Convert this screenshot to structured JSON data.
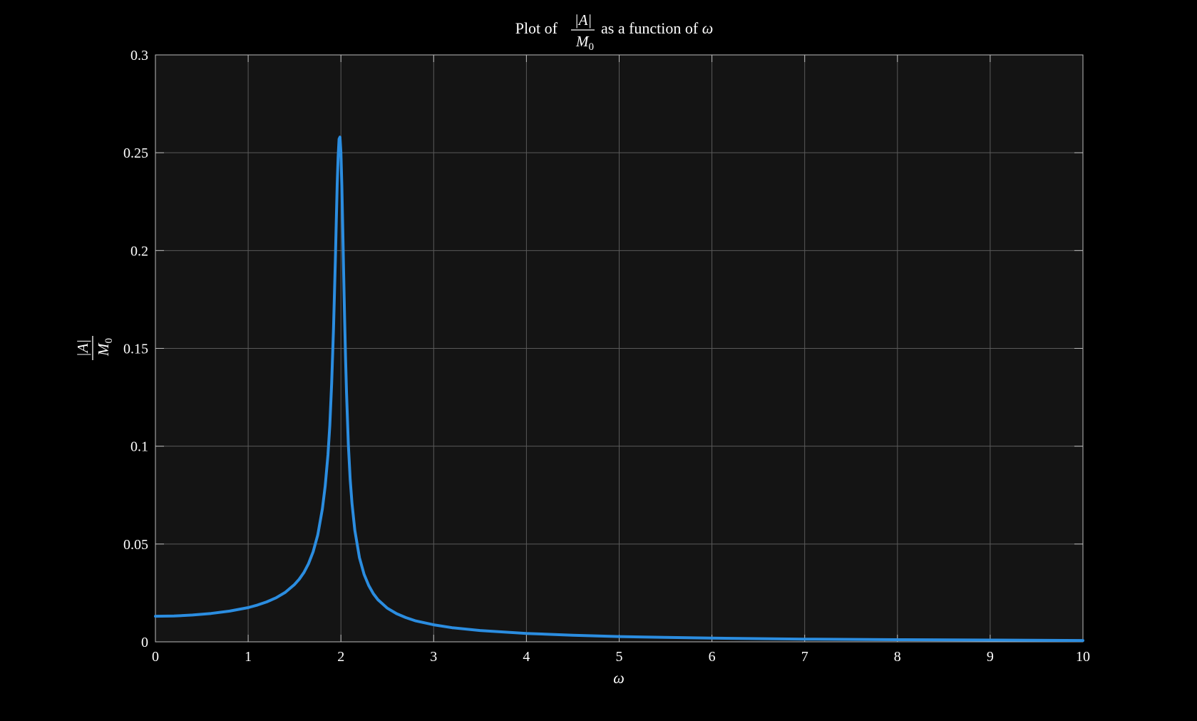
{
  "chart_data": {
    "type": "line",
    "title": {
      "prefix": "Plot of",
      "frac_num": "|A|",
      "frac_den": "M",
      "frac_den_sub": "0",
      "suffix": "as a function of",
      "var": "ω"
    },
    "xlabel": "ω",
    "ylabel": {
      "frac_num": "|A|",
      "frac_den": "M",
      "frac_den_sub": "0"
    },
    "xlim": [
      0,
      10
    ],
    "ylim": [
      0,
      0.3
    ],
    "xticks": [
      "0",
      "1",
      "2",
      "3",
      "4",
      "5",
      "6",
      "7",
      "8",
      "9",
      "10"
    ],
    "yticks": [
      "0",
      "0.05",
      "0.1",
      "0.15",
      "0.2",
      "0.25",
      "0.3"
    ],
    "grid": true,
    "colors": {
      "background": "#000000",
      "axes_background": "#141414",
      "grid": "#5a5a5a",
      "axes": "#bbbbbb",
      "line": "#2b8de0",
      "text": "#ffffff"
    },
    "series": [
      {
        "x": [
          0,
          0.2,
          0.4,
          0.6,
          0.8,
          1.0,
          1.1,
          1.2,
          1.3,
          1.4,
          1.5,
          1.55,
          1.6,
          1.65,
          1.7,
          1.75,
          1.8,
          1.83,
          1.86,
          1.88,
          1.9,
          1.92,
          1.94,
          1.95,
          1.96,
          1.97,
          1.98,
          1.99,
          2.0,
          2.01,
          2.02,
          2.03,
          2.04,
          2.05,
          2.06,
          2.08,
          2.1,
          2.12,
          2.15,
          2.2,
          2.25,
          2.3,
          2.35,
          2.4,
          2.5,
          2.6,
          2.7,
          2.8,
          3.0,
          3.2,
          3.5,
          4.0,
          4.5,
          5.0,
          5.5,
          6.0,
          7.0,
          8.0,
          9.0,
          10.0
        ],
        "y": [
          0.0131,
          0.0132,
          0.0137,
          0.0145,
          0.0157,
          0.0175,
          0.0188,
          0.0204,
          0.0225,
          0.0253,
          0.0293,
          0.032,
          0.0354,
          0.0399,
          0.046,
          0.0546,
          0.068,
          0.0795,
          0.0955,
          0.1105,
          0.132,
          0.16,
          0.195,
          0.215,
          0.234,
          0.248,
          0.257,
          0.258,
          0.25,
          0.233,
          0.211,
          0.187,
          0.165,
          0.145,
          0.128,
          0.101,
          0.083,
          0.0705,
          0.057,
          0.043,
          0.0345,
          0.0288,
          0.0246,
          0.0215,
          0.0172,
          0.0144,
          0.0124,
          0.0108,
          0.0087,
          0.0072,
          0.0058,
          0.0043,
          0.0034,
          0.0027,
          0.0023,
          0.0019,
          0.0014,
          0.0011,
          0.0009,
          0.0007
        ]
      }
    ]
  }
}
